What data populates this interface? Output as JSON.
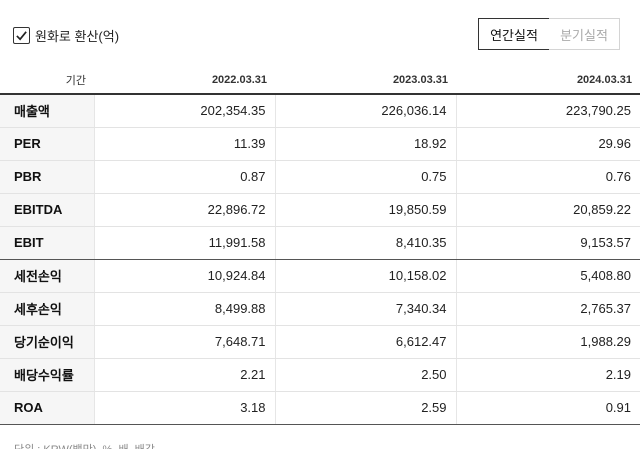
{
  "controls": {
    "krw_checkbox_label": "원화로 환산(억)",
    "krw_checked": true,
    "annual_button": "연간실적",
    "quarter_button": "분기실적"
  },
  "table": {
    "header_label": "기간",
    "columns": [
      "2022.03.31",
      "2023.03.31",
      "2024.03.31"
    ],
    "rows": [
      {
        "label": "매출액",
        "values": [
          "202,354.35",
          "226,036.14",
          "223,790.25"
        ]
      },
      {
        "label": "PER",
        "values": [
          "11.39",
          "18.92",
          "29.96"
        ]
      },
      {
        "label": "PBR",
        "values": [
          "0.87",
          "0.75",
          "0.76"
        ]
      },
      {
        "label": "EBITDA",
        "values": [
          "22,896.72",
          "19,850.59",
          "20,859.22"
        ]
      },
      {
        "label": "EBIT",
        "values": [
          "11,991.58",
          "8,410.35",
          "9,153.57"
        ]
      },
      {
        "label": "세전손익",
        "values": [
          "10,924.84",
          "10,158.02",
          "5,408.80"
        ]
      },
      {
        "label": "세후손익",
        "values": [
          "8,499.88",
          "7,340.34",
          "2,765.37"
        ]
      },
      {
        "label": "당기순이익",
        "values": [
          "7,648.71",
          "6,612.47",
          "1,988.29"
        ]
      },
      {
        "label": "배당수익률",
        "values": [
          "2.21",
          "2.50",
          "2.19"
        ]
      },
      {
        "label": "ROA",
        "values": [
          "3.18",
          "2.59",
          "0.91"
        ]
      }
    ]
  },
  "footer": {
    "note": "단위 : KRW(백만), %, 배, 배각"
  }
}
